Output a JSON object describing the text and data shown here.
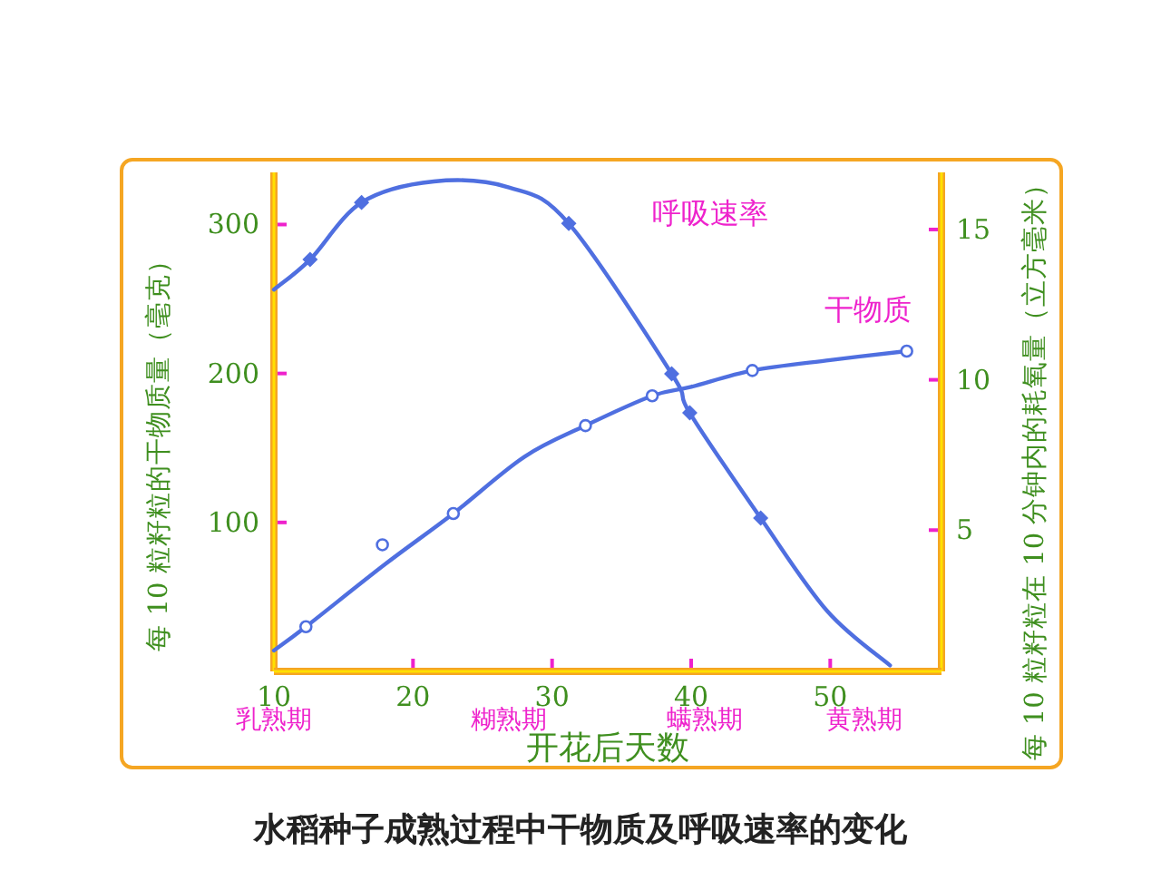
{
  "chart_data": {
    "type": "line",
    "title": "水稻种子成熟过程中干物质及呼吸速率的变化",
    "xlabel": "开花后天数",
    "ylabel": "每 10 粒籽粒的干物质量（毫克）",
    "y2label": "每 10 粒籽粒在 10 分钟内的耗氧量（立方毫米）",
    "xlim": [
      10,
      58
    ],
    "xticks": [
      10,
      20,
      30,
      40,
      50
    ],
    "ylim": [
      0,
      335
    ],
    "yticks": [
      100,
      200,
      300
    ],
    "y2lim": [
      0.3,
      16.9
    ],
    "y2ticks": [
      5,
      10,
      15
    ],
    "grid": false,
    "series": [
      {
        "name": "呼吸速率",
        "type": "line",
        "axis": "y2",
        "color": "#4f6fe0",
        "x": [
          10,
          12.6,
          16.3,
          21.5,
          26.9,
          31.2,
          38.6,
          39.9,
          45.0,
          49.8,
          54.3
        ],
        "values": [
          13.0,
          14.0,
          15.9,
          16.6,
          16.4,
          15.2,
          10.2,
          8.9,
          5.4,
          2.3,
          0.5
        ]
      },
      {
        "type": "scatter",
        "axis": "y2",
        "marker": "diamond",
        "color": "#4f6fe0",
        "x": [
          12.6,
          16.3,
          31.2,
          38.6,
          39.9,
          45.0
        ],
        "values": [
          14.0,
          15.9,
          15.2,
          10.2,
          8.9,
          5.4
        ]
      },
      {
        "name": "干物质",
        "type": "line",
        "color": "#4f6fe0",
        "x": [
          10,
          12.3,
          18,
          22.9,
          28,
          32.4,
          37.2,
          40,
          44.4,
          50,
          55.5
        ],
        "values": [
          14,
          30,
          72,
          106,
          144,
          165,
          185,
          191,
          202,
          209,
          215
        ]
      },
      {
        "type": "scatter",
        "marker": "circle",
        "color": "#4f6fe0",
        "x": [
          12.3,
          17.8,
          22.9,
          32.4,
          37.2,
          44.4,
          55.5
        ],
        "values": [
          30,
          85,
          106,
          165,
          185,
          202,
          215
        ]
      }
    ],
    "annotations": [
      "乳熟期",
      "糊熟期",
      "螨熟期",
      "黄熟期"
    ]
  }
}
